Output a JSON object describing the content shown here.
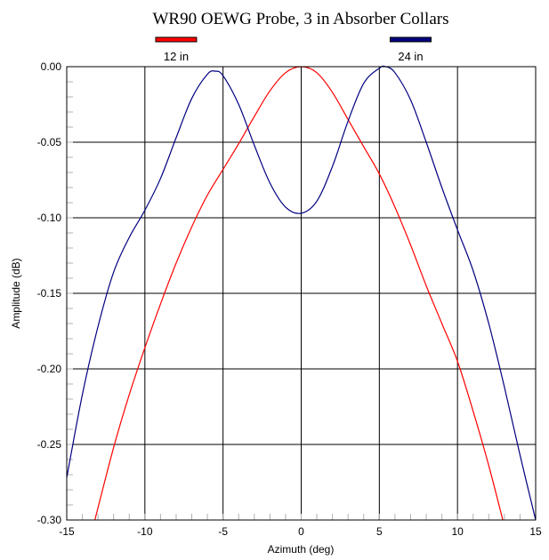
{
  "chart_data": {
    "type": "line",
    "title": "WR90 OEWG Probe, 3 in Absorber Collars",
    "xlabel": "Azimuth (deg)",
    "ylabel": "Amplitude (dB)",
    "xlim": [
      -15,
      15
    ],
    "ylim": [
      -0.3,
      0.0
    ],
    "x_ticks": [
      -15,
      -10,
      -5,
      0,
      5,
      10,
      15
    ],
    "x_tick_labels": [
      "-15",
      "-10",
      "-5",
      "0",
      "5",
      "10",
      "15"
    ],
    "y_ticks": [
      0.0,
      -0.05,
      -0.1,
      -0.15,
      -0.2,
      -0.25,
      -0.3
    ],
    "y_tick_labels": [
      "0.00",
      "-0.05",
      "-0.10",
      "-0.15",
      "-0.20",
      "-0.25",
      "-0.30"
    ],
    "grid": true,
    "legend_position": "top",
    "series": [
      {
        "name": "12 in",
        "color": "#ff0000",
        "x": [
          -13.2,
          -12,
          -11,
          -10,
          -9,
          -8,
          -7,
          -6,
          -5,
          -4,
          -3,
          -2,
          -1,
          0,
          1,
          2,
          3,
          4,
          5,
          6,
          7,
          8,
          9,
          10,
          11,
          12,
          12.9
        ],
        "y": [
          -0.3,
          -0.252,
          -0.217,
          -0.186,
          -0.157,
          -0.13,
          -0.106,
          -0.085,
          -0.068,
          -0.051,
          -0.033,
          -0.016,
          -0.004,
          0.0,
          -0.004,
          -0.017,
          -0.035,
          -0.053,
          -0.071,
          -0.093,
          -0.118,
          -0.145,
          -0.17,
          -0.195,
          -0.228,
          -0.264,
          -0.3
        ]
      },
      {
        "name": "24 in",
        "color": "#000080",
        "x": [
          -15,
          -14,
          -13,
          -12,
          -11,
          -10,
          -9,
          -8,
          -7,
          -6,
          -5.5,
          -5,
          -4,
          -3,
          -2,
          -1,
          0,
          1,
          2,
          3,
          4,
          5,
          5.4,
          6,
          7,
          8,
          9,
          10,
          11,
          12,
          13,
          14,
          15
        ],
        "y": [
          -0.272,
          -0.217,
          -0.172,
          -0.136,
          -0.113,
          -0.095,
          -0.074,
          -0.047,
          -0.021,
          -0.005,
          -0.003,
          -0.006,
          -0.025,
          -0.052,
          -0.077,
          -0.093,
          -0.097,
          -0.089,
          -0.066,
          -0.036,
          -0.011,
          -0.001,
          0.0,
          -0.004,
          -0.022,
          -0.05,
          -0.08,
          -0.108,
          -0.135,
          -0.17,
          -0.212,
          -0.257,
          -0.3
        ]
      }
    ]
  }
}
